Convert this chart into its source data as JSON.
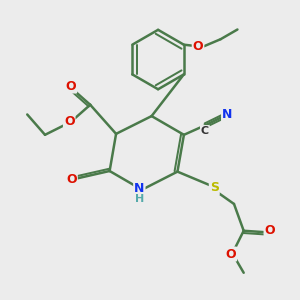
{
  "background_color": "#ececec",
  "bond_color": "#4a7a4a",
  "bond_width": 1.8,
  "atom_colors": {
    "O": "#dd1100",
    "N": "#1133ee",
    "S": "#bbbb00",
    "H": "#55aaaa",
    "C": "#333333",
    "default": "#333333"
  },
  "font_size": 9
}
